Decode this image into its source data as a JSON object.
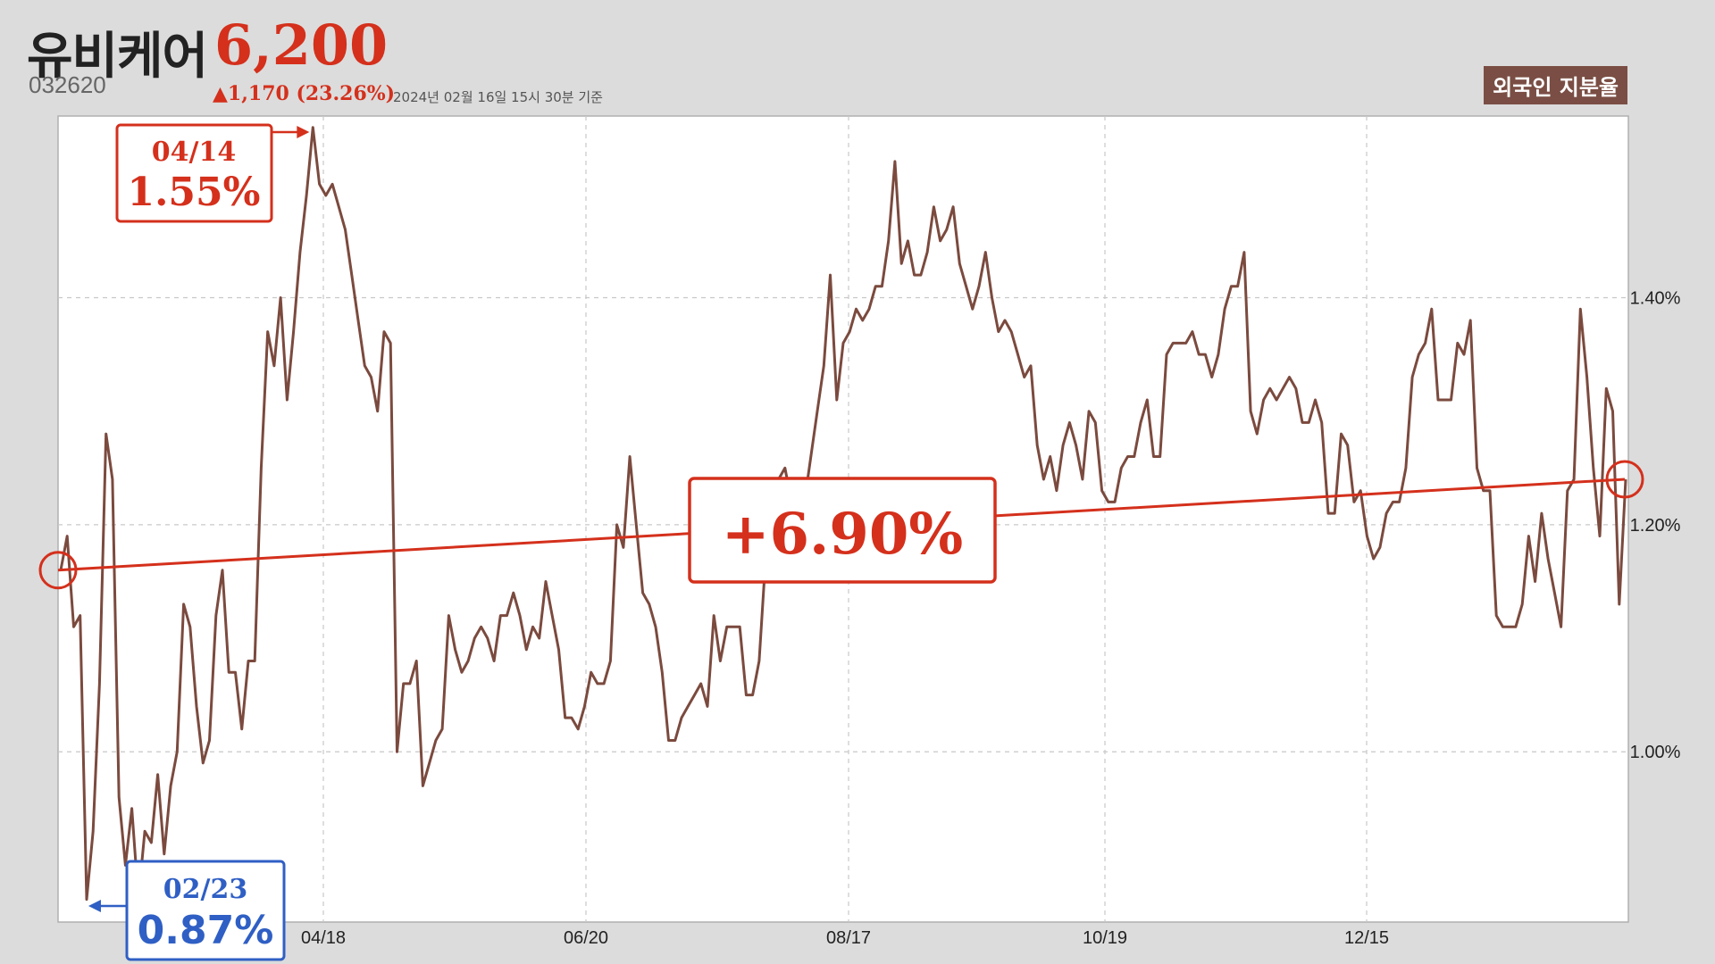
{
  "header": {
    "name": "유비케어",
    "price": "6,200",
    "ticker": "032620",
    "change": "▲1,170 (23.26%)",
    "asof": "2024년 02월 16일 15시 30분 기준",
    "badge": "외국인 지분율"
  },
  "colors": {
    "line": "#7b4a3e",
    "accent": "#d4301c",
    "blue": "#2f5fc4",
    "grid": "#c8c8c8"
  },
  "chart_data": {
    "type": "line",
    "x_ticks": [
      "04/18",
      "06/20",
      "08/17",
      "10/19",
      "12/15"
    ],
    "y_ticks": [
      "1.00%",
      "1.20%",
      "1.40%"
    ],
    "ylim": [
      0.85,
      1.56
    ],
    "grid": true,
    "series": [
      {
        "values": [
          1.16,
          1.19,
          1.11,
          1.12,
          0.87,
          0.93,
          1.06,
          1.28,
          1.24,
          0.96,
          0.9,
          0.95,
          0.87,
          0.93,
          0.92,
          0.98,
          0.91,
          0.97,
          1.0,
          1.13,
          1.11,
          1.04,
          0.99,
          1.01,
          1.12,
          1.16,
          1.07,
          1.07,
          1.02,
          1.08,
          1.08,
          1.25,
          1.37,
          1.34,
          1.4,
          1.31,
          1.37,
          1.44,
          1.49,
          1.55,
          1.5,
          1.49,
          1.5,
          1.48,
          1.46,
          1.42,
          1.38,
          1.34,
          1.33,
          1.3,
          1.37,
          1.36,
          1.0,
          1.06,
          1.06,
          1.08,
          0.97,
          0.99,
          1.01,
          1.02,
          1.12,
          1.09,
          1.07,
          1.08,
          1.1,
          1.11,
          1.1,
          1.08,
          1.12,
          1.12,
          1.14,
          1.12,
          1.09,
          1.11,
          1.1,
          1.15,
          1.12,
          1.09,
          1.03,
          1.03,
          1.02,
          1.04,
          1.07,
          1.06,
          1.06,
          1.08,
          1.2,
          1.18,
          1.26,
          1.2,
          1.14,
          1.13,
          1.11,
          1.07,
          1.01,
          1.01,
          1.03,
          1.04,
          1.05,
          1.06,
          1.04,
          1.12,
          1.08,
          1.11,
          1.11,
          1.11,
          1.05,
          1.05,
          1.08,
          1.17,
          1.2,
          1.24,
          1.25,
          1.22,
          1.24,
          1.22,
          1.26,
          1.3,
          1.34,
          1.42,
          1.31,
          1.36,
          1.37,
          1.39,
          1.38,
          1.39,
          1.41,
          1.41,
          1.45,
          1.52,
          1.43,
          1.45,
          1.42,
          1.42,
          1.44,
          1.48,
          1.45,
          1.46,
          1.48,
          1.43,
          1.41,
          1.39,
          1.41,
          1.44,
          1.4,
          1.37,
          1.38,
          1.37,
          1.35,
          1.33,
          1.34,
          1.27,
          1.24,
          1.26,
          1.23,
          1.27,
          1.29,
          1.27,
          1.24,
          1.3,
          1.29,
          1.23,
          1.22,
          1.22,
          1.25,
          1.26,
          1.26,
          1.29,
          1.31,
          1.26,
          1.26,
          1.35,
          1.36,
          1.36,
          1.36,
          1.37,
          1.35,
          1.35,
          1.33,
          1.35,
          1.39,
          1.41,
          1.41,
          1.44,
          1.3,
          1.28,
          1.31,
          1.32,
          1.31,
          1.32,
          1.33,
          1.32,
          1.29,
          1.29,
          1.31,
          1.29,
          1.21,
          1.21,
          1.28,
          1.27,
          1.22,
          1.23,
          1.19,
          1.17,
          1.18,
          1.21,
          1.22,
          1.22,
          1.25,
          1.33,
          1.35,
          1.36,
          1.39,
          1.31,
          1.31,
          1.31,
          1.36,
          1.35,
          1.38,
          1.25,
          1.23,
          1.23,
          1.12,
          1.11,
          1.11,
          1.11,
          1.13,
          1.19,
          1.15,
          1.21,
          1.17,
          1.14,
          1.11,
          1.23,
          1.24,
          1.39,
          1.33,
          1.25,
          1.19,
          1.32,
          1.3,
          1.13,
          1.24
        ]
      }
    ],
    "start": {
      "value": 1.16
    },
    "end": {
      "value": 1.24
    },
    "change_label": "+6.90%",
    "max": {
      "date": "04/14",
      "label": "1.55%",
      "value": 1.55
    },
    "min": {
      "date": "02/23",
      "label": "0.87%",
      "value": 0.87
    }
  }
}
